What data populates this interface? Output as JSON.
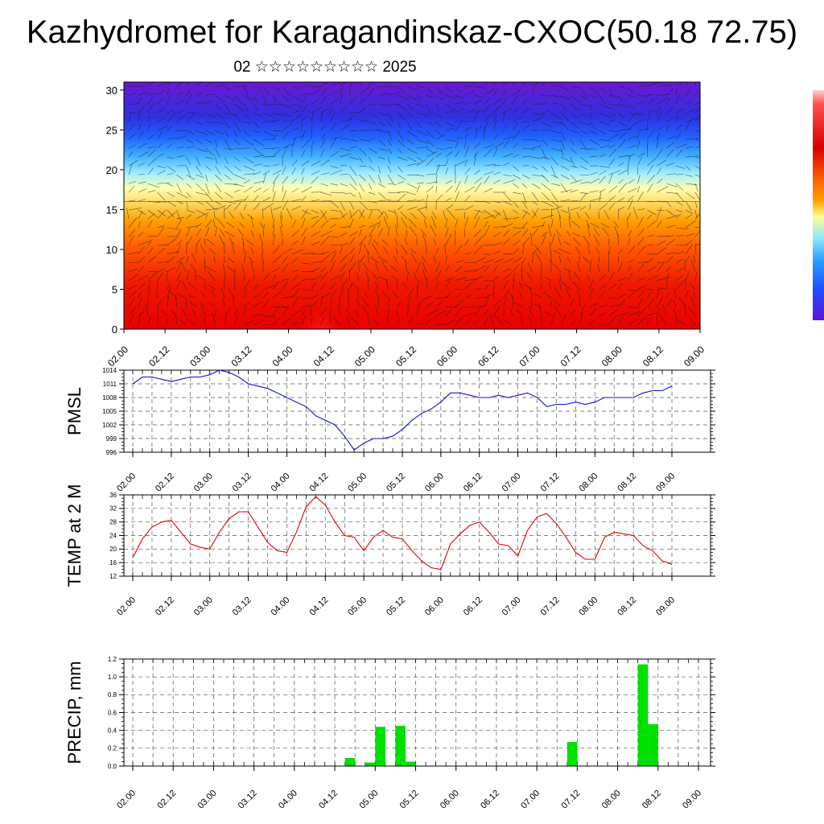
{
  "header": {
    "title": "Kazhydromet for Karagandinskaz-CXOC(50.18 72.75)",
    "subtitle": "02 ☆☆☆☆☆☆☆☆☆ 2025"
  },
  "colors": {
    "pmsl_line": "#1010d0",
    "temp_line": "#e00000",
    "precip_bar": "#00e000"
  },
  "x_ticks": [
    "02.00",
    "02.12",
    "03.00",
    "03.12",
    "04.00",
    "04.12",
    "05.00",
    "05.12",
    "06.00",
    "06.12",
    "07.00",
    "07.12",
    "08.00",
    "08.12",
    "09.00"
  ],
  "chart_data": [
    {
      "type": "heatmap",
      "name": "cross-section",
      "y_ticks": [
        "0",
        "5",
        "10",
        "15",
        "20",
        "25",
        "30"
      ],
      "ylim": [
        0,
        31
      ],
      "colormap": [
        "#ff4040",
        "#e00000",
        "#ff6a00",
        "#ffa500",
        "#ffff90",
        "#8fe8ff",
        "#2aa0ff",
        "#1e50ff",
        "#5c14d8"
      ],
      "isotherm_level_y": 16
    },
    {
      "type": "line",
      "ylabel": "PMSL",
      "y_ticks": [
        "996",
        "999",
        "1002",
        "1005",
        "1008",
        "1011",
        "1014"
      ],
      "ylim": [
        996,
        1014
      ],
      "x": [
        0,
        3,
        6,
        9,
        12,
        15,
        18,
        21,
        24,
        27,
        30,
        33,
        36,
        39,
        42,
        45,
        48,
        51,
        54,
        57,
        60,
        63,
        66,
        69,
        72,
        75,
        78,
        81,
        84,
        87,
        90,
        93,
        96,
        99,
        102,
        105,
        108,
        111,
        114,
        117,
        120,
        123,
        126,
        129,
        132,
        135,
        138,
        141,
        144,
        147,
        150,
        153,
        156,
        159,
        162,
        165,
        168
      ],
      "values": [
        1011,
        1012.5,
        1012.5,
        1012,
        1011.5,
        1012,
        1012.5,
        1012.5,
        1013,
        1014,
        1013.5,
        1012.5,
        1011,
        1010.5,
        1010,
        1009,
        1008,
        1007,
        1006,
        1004,
        1003,
        1002,
        999.5,
        996.5,
        998,
        999,
        999,
        999.5,
        1001,
        1003,
        1004.5,
        1005.5,
        1007,
        1009,
        1009,
        1008.5,
        1008,
        1008,
        1008.5,
        1008,
        1008.5,
        1009,
        1008,
        1006,
        1006.5,
        1006.5,
        1007,
        1006.5,
        1007,
        1008,
        1008,
        1008,
        1008,
        1009,
        1009.5,
        1009.5,
        1010.5
      ]
    },
    {
      "type": "line",
      "ylabel": "TEMP at 2 M",
      "y_ticks": [
        "12",
        "16",
        "20",
        "24",
        "28",
        "32",
        "36"
      ],
      "ylim": [
        12,
        36
      ],
      "x": [
        0,
        3,
        6,
        9,
        12,
        15,
        18,
        21,
        24,
        27,
        30,
        33,
        36,
        39,
        42,
        45,
        48,
        51,
        54,
        57,
        60,
        63,
        66,
        69,
        72,
        75,
        78,
        81,
        84,
        87,
        90,
        93,
        96,
        99,
        102,
        105,
        108,
        111,
        114,
        117,
        120,
        123,
        126,
        129,
        132,
        135,
        138,
        141,
        144,
        147,
        150,
        153,
        156,
        159,
        162,
        165,
        168
      ],
      "values": [
        17.5,
        23,
        26.5,
        28,
        28.5,
        25,
        21.5,
        20.5,
        20,
        25,
        29,
        31,
        31,
        26.5,
        22,
        19.5,
        19,
        25,
        32.5,
        35.5,
        33,
        28,
        24,
        23.5,
        19.5,
        23.5,
        25.5,
        23.5,
        23,
        19.5,
        16.5,
        14.5,
        14,
        21.5,
        24.5,
        27,
        28,
        25,
        21.5,
        21,
        18,
        25.5,
        29.5,
        30.5,
        27.5,
        23.5,
        19,
        17,
        17,
        23.5,
        25,
        24.5,
        24,
        21,
        19.5,
        16.5,
        15.5
      ]
    },
    {
      "type": "bar",
      "ylabel": "PRECIP, mm",
      "y_ticks": [
        "0.0",
        "0.2",
        "0.4",
        "0.6",
        "0.8",
        "1.0",
        "1.2"
      ],
      "ylim": [
        0,
        1.2
      ],
      "bar_width_hours": 3,
      "x": [
        63,
        69,
        72,
        78,
        81,
        129,
        150,
        153
      ],
      "values": [
        0.09,
        0.04,
        0.44,
        0.45,
        0.05,
        0.27,
        1.14,
        0.47
      ]
    }
  ]
}
